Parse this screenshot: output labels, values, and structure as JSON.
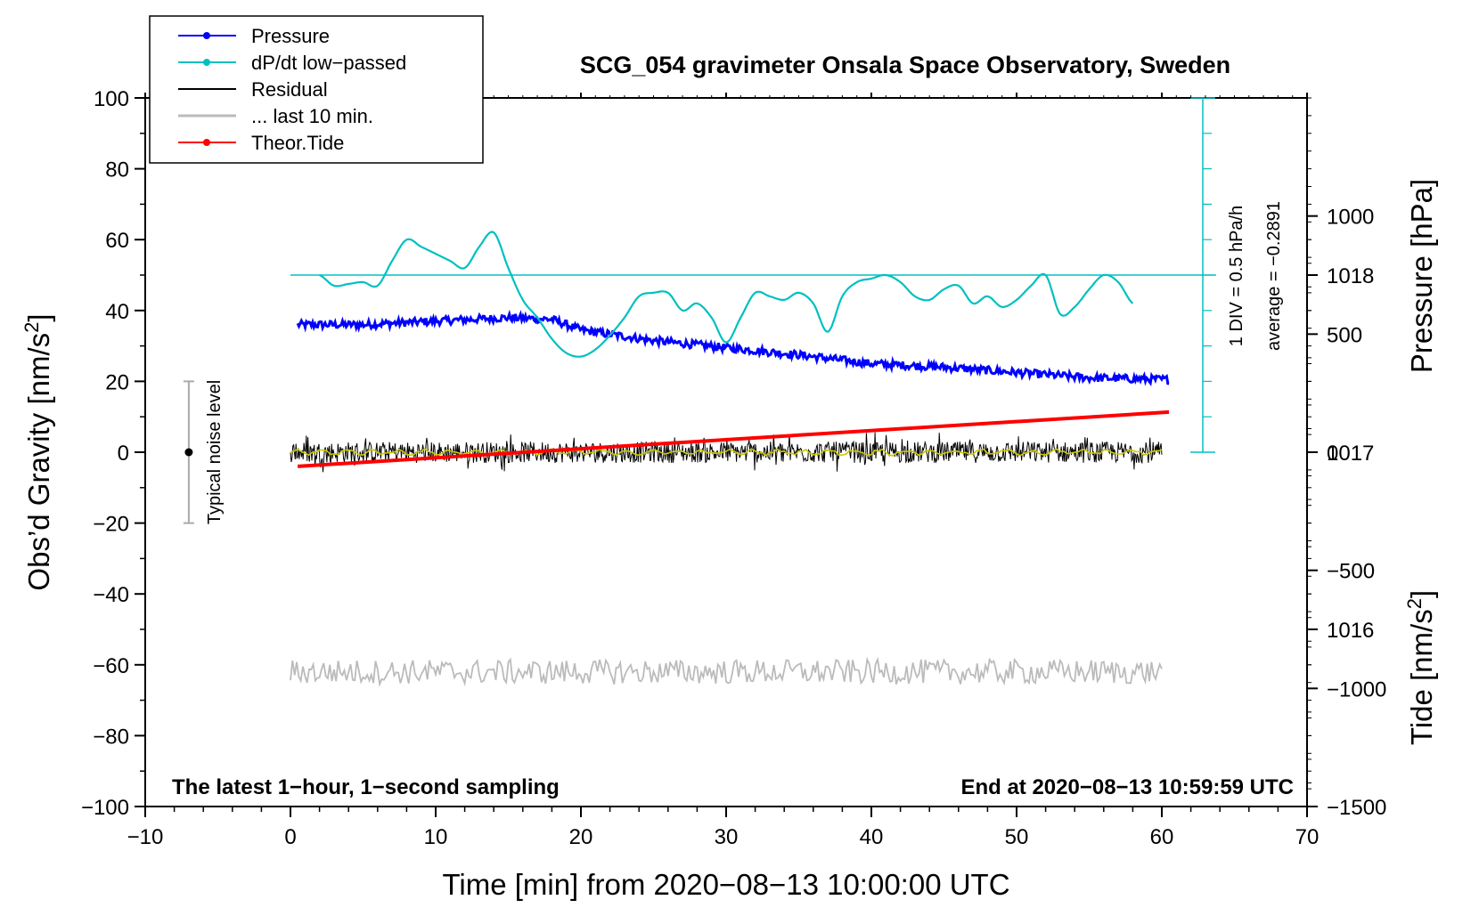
{
  "chart_data": {
    "type": "line",
    "title": "SCG_054 gravimeter Onsala Space Observatory, Sweden",
    "xlabel": "Time [min] from 2020−08−13 10:00:00 UTC",
    "ylabel_left_main": "Obs’d Gravity [nm/s",
    "ylabel_left_sup": "2",
    "ylabel_left_close": "]",
    "ylabel_right_pressure": "Pressure [hPa]",
    "ylabel_right_tide_main": "Tide [nm/s",
    "ylabel_right_tide_sup": "2",
    "ylabel_right_tide_close": "]",
    "xlim": [
      -10,
      70
    ],
    "ylim_left": [
      -100,
      100
    ],
    "ylim_pressure": [
      1015.0,
      1019.0
    ],
    "ylim_tide": [
      -1500,
      1500
    ],
    "x_ticks": [
      "−10",
      "0",
      "10",
      "20",
      "30",
      "40",
      "50",
      "60",
      "70"
    ],
    "y_ticks_left": [
      "100",
      "80",
      "60",
      "40",
      "20",
      "0",
      "−20",
      "−40",
      "−60",
      "−80",
      "−100"
    ],
    "y_ticks_pressure": [
      "1018",
      "1017",
      "1016"
    ],
    "y_ticks_tide": [
      "1000",
      "500",
      "0",
      "−500",
      "−1000",
      "−1500"
    ],
    "legend": [
      {
        "label": "Pressure",
        "color": "#0000ff",
        "marker": true
      },
      {
        "label": "dP/dt low−passed",
        "color": "#00c0c0",
        "marker": true
      },
      {
        "label": "Residual",
        "color": "#000000",
        "marker": false
      },
      {
        "label": "... last 10 min.",
        "color": "#bbbbbb",
        "marker": false
      },
      {
        "label": "Theor.Tide",
        "color": "#ff0000",
        "marker": true
      }
    ],
    "series": [
      {
        "name": "Pressure",
        "axis": "pressure",
        "color": "#0000ff",
        "x": [
          0.5,
          5,
          10,
          15,
          18,
          20,
          25,
          30,
          35,
          40,
          45,
          50,
          55,
          60.5
        ],
        "y": [
          1017.72,
          1017.72,
          1017.74,
          1017.76,
          1017.75,
          1017.69,
          1017.63,
          1017.59,
          1017.55,
          1017.5,
          1017.48,
          1017.45,
          1017.42,
          1017.41
        ]
      },
      {
        "name": "dP/dt low-passed",
        "axis": "left",
        "color": "#00c0c0",
        "x": [
          2,
          3,
          4,
          5,
          6,
          7,
          8,
          9,
          10,
          11,
          12,
          13,
          14,
          15,
          16,
          17,
          18,
          19,
          20,
          21,
          22,
          23,
          24,
          25,
          26,
          27,
          28,
          29,
          30,
          31,
          32,
          33,
          34,
          35,
          36,
          37,
          38,
          39,
          40,
          41,
          42,
          43,
          44,
          45,
          46,
          47,
          48,
          49,
          50,
          51,
          52,
          53,
          54,
          55,
          56,
          57,
          58
        ],
        "y": [
          50,
          47,
          47.5,
          48,
          47,
          54,
          60,
          58,
          56,
          54,
          52,
          58,
          62,
          52,
          43,
          38,
          32,
          28,
          27,
          29,
          33,
          38,
          44,
          45,
          45,
          40,
          42,
          38,
          31,
          38,
          45,
          44,
          43,
          45,
          42,
          34,
          44,
          48,
          49,
          50,
          48,
          44,
          43,
          46,
          47,
          42,
          44,
          41,
          43,
          47,
          50,
          39,
          41,
          46,
          50,
          48,
          42
        ]
      },
      {
        "name": "Residual",
        "axis": "left",
        "color": "#000000",
        "x_range": [
          0,
          60
        ],
        "center": 0,
        "amplitude": 4
      },
      {
        "name": "... last 10 min.",
        "axis": "left",
        "color": "#bbbbbb",
        "x_range": [
          0,
          60
        ],
        "center": -62,
        "amplitude": 3.5
      },
      {
        "name": "Theor.Tide",
        "axis": "tide",
        "color": "#ff0000",
        "x": [
          0.5,
          60.5
        ],
        "y": [
          -60,
          170
        ]
      }
    ],
    "dpdt_reference": {
      "zero_gravity_level": 50,
      "div_label": "1 DIV = 0.5 hPa/h",
      "average_label": "average = −0.2891"
    },
    "noise_level": {
      "x": -7,
      "y": 0,
      "range": [
        -20,
        20
      ],
      "label": "Typical noise level"
    },
    "note_left": "The latest 1−hour, 1−second sampling",
    "note_right": "End at 2020−08−13 10:59:59 UTC"
  }
}
